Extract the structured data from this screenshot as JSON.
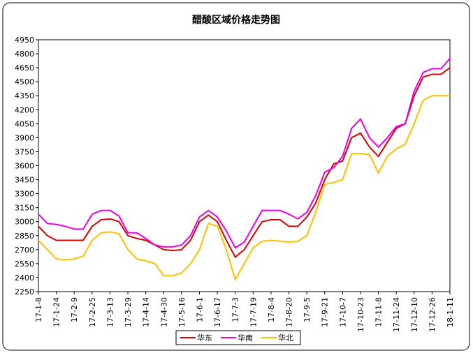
{
  "chart_data": {
    "type": "line",
    "title": "醋酸区域价格走势图",
    "categories": [
      "17-1-8",
      null,
      "17-1-24",
      null,
      "17-2-9",
      null,
      "17-2-25",
      null,
      "17-3-13",
      null,
      "17-3-29",
      null,
      "17-4-14",
      null,
      "17-4-30",
      null,
      "17-5-16",
      null,
      "17-6-1",
      null,
      "17-6-17",
      null,
      "17-7-3",
      null,
      "17-7-19",
      null,
      "17-8-4",
      null,
      "17-8-20",
      null,
      "17-9-5",
      null,
      "17-9-21",
      null,
      "17-10-7",
      null,
      "17-10-23",
      null,
      "17-11-8",
      null,
      "17-11-24",
      null,
      "17-12-10",
      null,
      "17-12-26",
      null,
      "18-1-11"
    ],
    "series": [
      {
        "name": "华东",
        "color": "#dd0000",
        "values": [
          2950,
          2850,
          2800,
          2800,
          2800,
          2800,
          2950,
          3020,
          3030,
          3000,
          2850,
          2820,
          2800,
          2750,
          2700,
          2690,
          2700,
          2800,
          3000,
          3070,
          3000,
          2800,
          2620,
          2700,
          2850,
          3000,
          3020,
          3020,
          2950,
          2950,
          3050,
          3200,
          3450,
          3620,
          3650,
          3900,
          3950,
          3800,
          3700,
          3850,
          4000,
          4050,
          4350,
          4550,
          4580,
          4580,
          4650
        ]
      },
      {
        "name": "华南",
        "color": "#ee00ee",
        "values": [
          3080,
          2980,
          2970,
          2950,
          2920,
          2920,
          3080,
          3120,
          3120,
          3060,
          2880,
          2880,
          2820,
          2750,
          2730,
          2730,
          2750,
          2850,
          3050,
          3120,
          3050,
          2900,
          2720,
          2780,
          2950,
          3120,
          3120,
          3120,
          3080,
          3030,
          3100,
          3280,
          3530,
          3580,
          3700,
          4000,
          4100,
          3900,
          3800,
          3900,
          4020,
          4050,
          4400,
          4600,
          4640,
          4640,
          4750
        ]
      },
      {
        "name": "华北",
        "color": "#ffc000",
        "values": [
          2800,
          2700,
          2600,
          2590,
          2600,
          2630,
          2800,
          2880,
          2890,
          2870,
          2700,
          2600,
          2580,
          2550,
          2420,
          2420,
          2450,
          2550,
          2700,
          2980,
          2950,
          2700,
          2380,
          2550,
          2720,
          2790,
          2800,
          2790,
          2780,
          2790,
          2850,
          3100,
          3400,
          3420,
          3450,
          3730,
          3730,
          3720,
          3520,
          3700,
          3780,
          3830,
          4050,
          4300,
          4350,
          4350,
          4350
        ]
      }
    ],
    "ylim": [
      2250,
      4950
    ],
    "yticks": [
      2250,
      2400,
      2550,
      2700,
      2850,
      3000,
      3150,
      3300,
      3450,
      3600,
      3750,
      3900,
      4050,
      4200,
      4350,
      4500,
      4650,
      4800,
      4950
    ],
    "legend": "bottom"
  }
}
